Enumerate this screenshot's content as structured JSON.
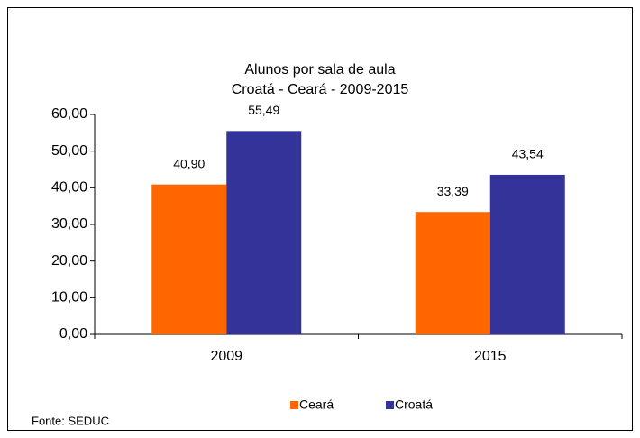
{
  "chart_data": {
    "type": "bar",
    "title": "Alunos por sala de aula",
    "subtitle": "Croatá - Ceará - 2009-2015",
    "categories": [
      "2009",
      "2015"
    ],
    "series": [
      {
        "name": "Ceará",
        "color": "#ff6600",
        "values": [
          40.9,
          33.39
        ],
        "value_labels": [
          "40,90",
          "33,39"
        ]
      },
      {
        "name": "Croatá",
        "color": "#333399",
        "values": [
          55.49,
          43.54
        ],
        "value_labels": [
          "55,49",
          "43,54"
        ]
      }
    ],
    "ylim": [
      0,
      60
    ],
    "yticks": [
      {
        "value": 0,
        "label": "0,00"
      },
      {
        "value": 10,
        "label": "10,00"
      },
      {
        "value": 20,
        "label": "20,00"
      },
      {
        "value": 30,
        "label": "30,00"
      },
      {
        "value": 40,
        "label": "40,00"
      },
      {
        "value": 50,
        "label": "50,00"
      },
      {
        "value": 60,
        "label": "60,00"
      }
    ],
    "grid": false,
    "legend": "bottom",
    "source": "Fonte: SEDUC"
  }
}
